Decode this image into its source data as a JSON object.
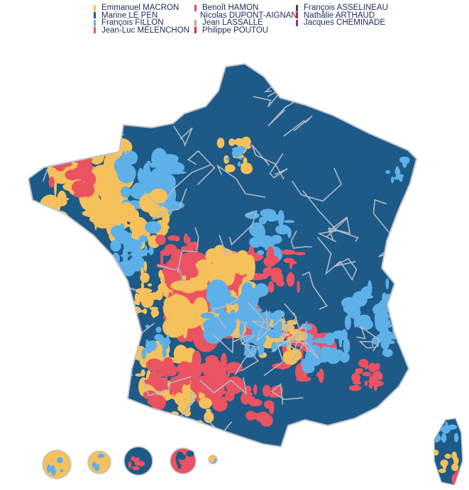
{
  "legend": [
    {
      "name": "Emmanuel MACRON",
      "color": "#f6c15b"
    },
    {
      "name": "Marine LE PEN",
      "color": "#1d5a88"
    },
    {
      "name": "François FILLON",
      "color": "#5eb0e8"
    },
    {
      "name": "Jean-Luc MÉLENCHON",
      "color": "#ea5362"
    },
    {
      "name": "Benoît HAMON",
      "color": "#e4417c"
    },
    {
      "name": "Nicolas DUPONT-AIGNAN",
      "color": "#3d7bb0"
    },
    {
      "name": "Jean LASSALLE",
      "color": "#c9a2b0"
    },
    {
      "name": "Philippe POUTOU",
      "color": "#e3262e"
    },
    {
      "name": "François ASSELINEAU",
      "color": "#2d3f88"
    },
    {
      "name": "Nathâlie ARTHAUD",
      "color": "#d81f26"
    },
    {
      "name": "Jacques CHEMINADE",
      "color": "#7a3aa0"
    }
  ],
  "map": {
    "border_color": "#b5b9c2"
  }
}
